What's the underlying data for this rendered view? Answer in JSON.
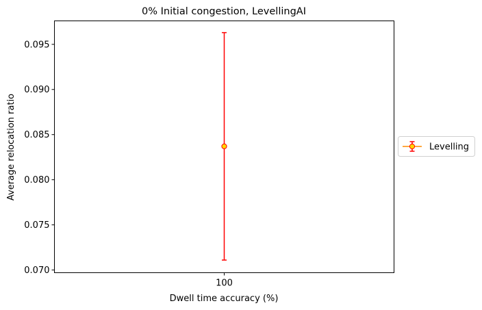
{
  "chart_data": {
    "type": "scatter",
    "title": "0% Initial congestion, LevellingAI",
    "xlabel": "Dwell time accuracy (%)",
    "ylabel": "Average relocation ratio",
    "x_categories": [
      "100"
    ],
    "ylim": [
      0.0697,
      0.0976
    ],
    "y_ticks": [
      0.07,
      0.075,
      0.08,
      0.085,
      0.09,
      0.095
    ],
    "y_tick_labels": [
      "0.070",
      "0.075",
      "0.080",
      "0.085",
      "0.090",
      "0.095"
    ],
    "grid": false,
    "legend_position": "center-right-outside",
    "series": [
      {
        "name": "Levelling",
        "x": [
          "100"
        ],
        "values": [
          0.0837
        ],
        "error_lower": [
          0.0711
        ],
        "error_upper": [
          0.0963
        ],
        "line_color": "#ff8c00",
        "marker_color": "#ffd700",
        "marker_edge_color": "#ff0000",
        "error_color": "#ff0000"
      }
    ]
  }
}
